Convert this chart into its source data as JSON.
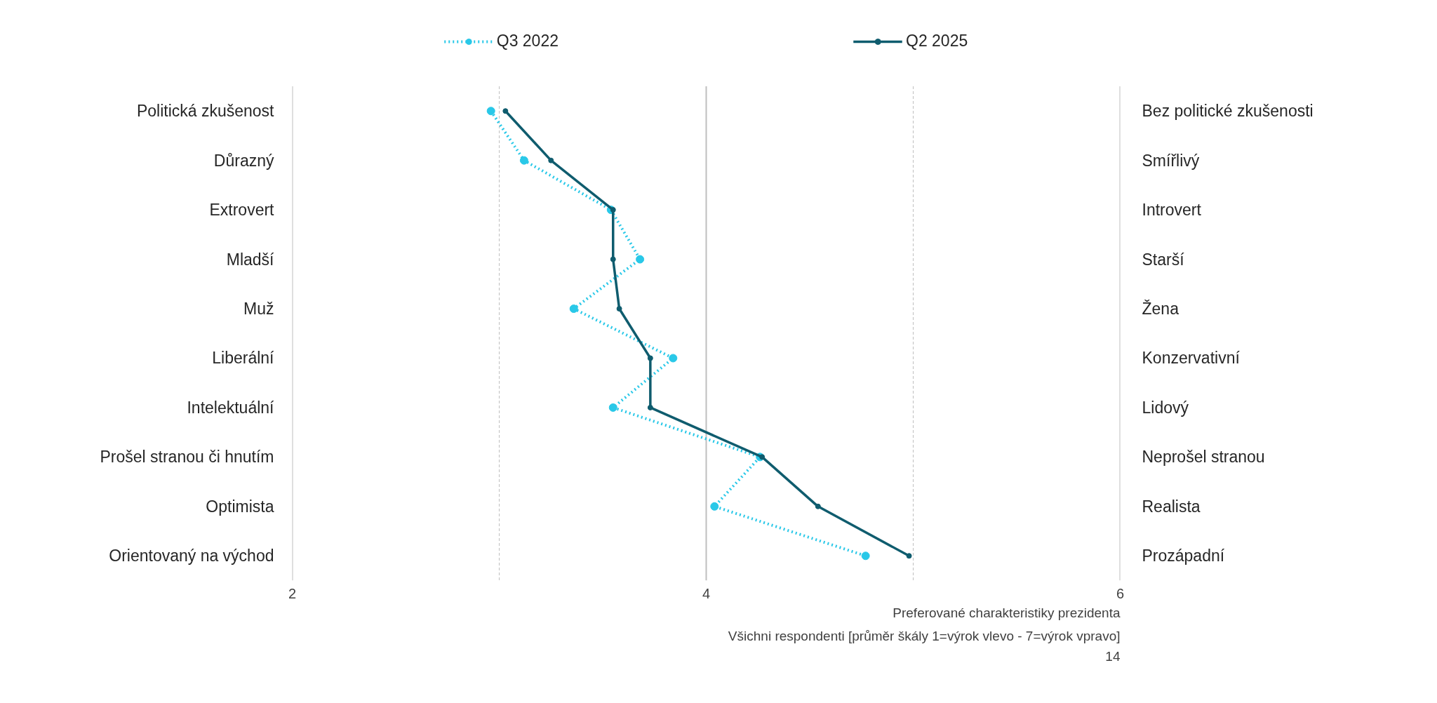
{
  "chart_data": {
    "type": "line",
    "orientation": "horizontal",
    "categories": [
      "Politická zkušenost",
      "Důrazný",
      "Extrovert",
      "Mladší",
      "Muž",
      "Liberální",
      "Intelektuální",
      "Prošel stranou či hnutím",
      "Optimista",
      "Orientovaný na východ"
    ],
    "y2_categories": [
      "Bez politické zkušenosti",
      "Smířlivý",
      "Introvert",
      "Starší",
      "Žena",
      "Konzervativní",
      "Lidový",
      "Neprošel stranou",
      "Realista",
      "Prozápadní"
    ],
    "series": [
      {
        "name": "Q3 2022",
        "color": "#29c8e8",
        "line_style": "dotted",
        "values": [
          2.96,
          3.12,
          3.54,
          3.68,
          3.36,
          3.84,
          3.55,
          4.26,
          4.04,
          4.77
        ]
      },
      {
        "name": "Q2 2025",
        "color": "#0f5c6e",
        "line_style": "solid",
        "values": [
          3.03,
          3.25,
          3.55,
          3.55,
          3.58,
          3.73,
          3.73,
          4.27,
          4.54,
          4.98
        ]
      }
    ],
    "xlim": [
      2,
      6
    ],
    "xticks": [
      2,
      {
        "value": 3,
        "label": null
      },
      4,
      {
        "value": 5,
        "label": null
      },
      6
    ],
    "ref_lines": [
      {
        "axis": "x",
        "value": 4,
        "color": "#bfbfbf"
      }
    ],
    "grid": "x",
    "legend": "top",
    "marker": "circle",
    "annotations": [
      "Preferované charakteristiky prezidenta",
      "Všichni respondenti [průměr škály 1=výrok vlevo - 7=výrok vpravo]",
      "14"
    ]
  }
}
